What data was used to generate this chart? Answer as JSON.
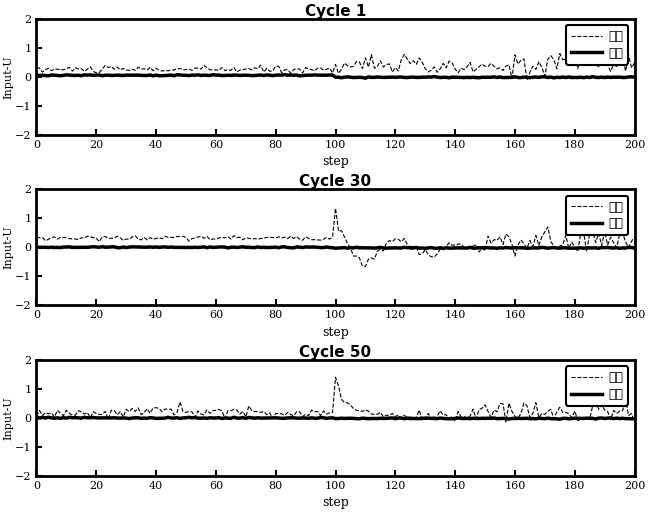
{
  "titles": [
    "Cycle 1",
    "Cycle 30",
    "Cycle 50"
  ],
  "xlabel": "step",
  "ylabel": "Input-U",
  "xlim": [
    0,
    200
  ],
  "ylim": [
    -2,
    2
  ],
  "xticks": [
    0,
    20,
    40,
    60,
    80,
    100,
    120,
    140,
    160,
    180,
    200
  ],
  "yticks": [
    -2,
    -1,
    0,
    1,
    2
  ],
  "legend_labels": [
    "一维",
    "二维"
  ],
  "line1_color": "#000000",
  "line2_color": "#000000",
  "background_color": "#ffffff"
}
